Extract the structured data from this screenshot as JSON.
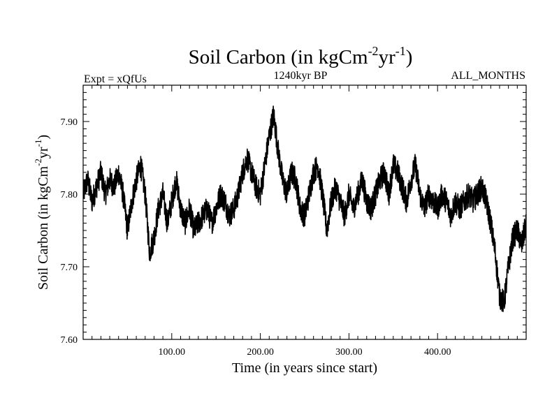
{
  "chart_data": {
    "type": "line",
    "title": {
      "base": "Soil Carbon (in kgCm",
      "sup1": "-2",
      "mid": "yr",
      "sup2": "-1",
      "end": ")"
    },
    "subtitle_left": "Expt = xQfUs",
    "subtitle_center": "1240kyr BP",
    "subtitle_right": "ALL_MONTHS",
    "xlabel": "Time (in years since start)",
    "ylabel": {
      "base": "Soil Carbon (in kgCm",
      "sup1": "-2",
      "mid": "yr",
      "sup2": "-1",
      "end": ")"
    },
    "xlim": [
      0,
      500
    ],
    "ylim": [
      7.6,
      7.95
    ],
    "xticks": [
      100,
      200,
      300,
      400
    ],
    "xtick_labels": [
      "100.00",
      "200.00",
      "300.00",
      "400.00"
    ],
    "yticks": [
      7.6,
      7.7,
      7.8,
      7.9
    ],
    "ytick_labels": [
      "7.60",
      "7.70",
      "7.80",
      "7.90"
    ],
    "grid": false,
    "line_color": "#000000",
    "series": [
      {
        "x": [
          0,
          5,
          10,
          15,
          20,
          25,
          30,
          35,
          40,
          45,
          50,
          55,
          60,
          65,
          70,
          75,
          80,
          85,
          90,
          95,
          100,
          105,
          110,
          115,
          120,
          125,
          130,
          135,
          140,
          145,
          150,
          155,
          160,
          165,
          170,
          175,
          180,
          185,
          190,
          195,
          200,
          205,
          210,
          215,
          220,
          225,
          230,
          235,
          240,
          245,
          250,
          255,
          260,
          265,
          270,
          275,
          280,
          285,
          290,
          295,
          300,
          305,
          310,
          315,
          320,
          325,
          330,
          335,
          340,
          345,
          350,
          355,
          360,
          365,
          370,
          375,
          380,
          385,
          390,
          395,
          400,
          405,
          410,
          415,
          420,
          425,
          430,
          435,
          440,
          445,
          450,
          455,
          460,
          465,
          470,
          475,
          480,
          485,
          490,
          495,
          500
        ],
        "y": [
          7.8,
          7.82,
          7.79,
          7.81,
          7.83,
          7.8,
          7.82,
          7.81,
          7.83,
          7.8,
          7.75,
          7.79,
          7.82,
          7.84,
          7.8,
          7.72,
          7.74,
          7.78,
          7.8,
          7.76,
          7.79,
          7.82,
          7.78,
          7.76,
          7.78,
          7.75,
          7.76,
          7.77,
          7.78,
          7.76,
          7.78,
          7.8,
          7.79,
          7.77,
          7.78,
          7.8,
          7.83,
          7.85,
          7.83,
          7.81,
          7.8,
          7.84,
          7.88,
          7.91,
          7.86,
          7.82,
          7.8,
          7.83,
          7.82,
          7.78,
          7.77,
          7.8,
          7.83,
          7.84,
          7.8,
          7.75,
          7.79,
          7.81,
          7.79,
          7.77,
          7.8,
          7.78,
          7.8,
          7.82,
          7.79,
          7.78,
          7.8,
          7.82,
          7.83,
          7.8,
          7.84,
          7.83,
          7.81,
          7.79,
          7.82,
          7.84,
          7.8,
          7.78,
          7.8,
          7.79,
          7.78,
          7.8,
          7.79,
          7.77,
          7.79,
          7.78,
          7.79,
          7.8,
          7.79,
          7.8,
          7.81,
          7.79,
          7.76,
          7.72,
          7.66,
          7.65,
          7.7,
          7.74,
          7.75,
          7.73,
          7.76
        ]
      }
    ]
  }
}
